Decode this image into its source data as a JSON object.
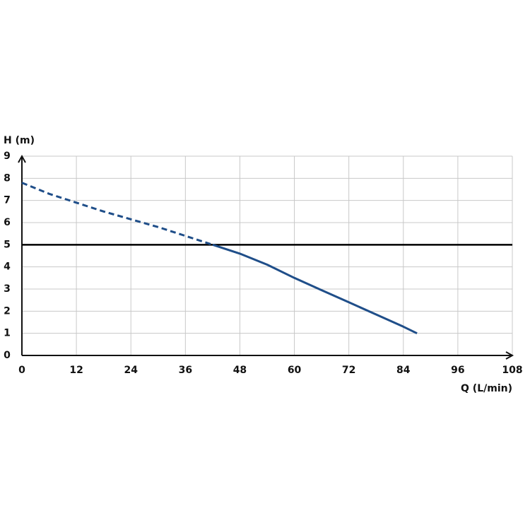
{
  "chart_data": {
    "type": "line",
    "x_label": "Q (L/min)",
    "y_label": "H (m)",
    "xlim": [
      0,
      108
    ],
    "xticks": [
      0,
      12,
      24,
      36,
      48,
      60,
      72,
      84,
      96,
      108
    ],
    "ylim": [
      0,
      9
    ],
    "yticks": [
      0,
      1,
      2,
      3,
      4,
      5,
      6,
      7,
      8,
      9
    ],
    "grid": true,
    "reference_line": {
      "y": 5,
      "color": "#000000"
    },
    "series": [
      {
        "color": "#1f4e89",
        "dashed": true,
        "x": [
          0,
          6,
          12,
          18,
          24,
          30,
          36,
          42
        ],
        "values": [
          7.8,
          7.3,
          6.9,
          6.5,
          6.15,
          5.8,
          5.4,
          5.0
        ]
      },
      {
        "color": "#1f4e89",
        "dashed": false,
        "x": [
          42,
          48,
          54,
          60,
          66,
          72,
          78,
          84,
          87
        ],
        "values": [
          5.0,
          4.6,
          4.1,
          3.5,
          2.95,
          2.4,
          1.85,
          1.3,
          1.0
        ]
      }
    ]
  }
}
